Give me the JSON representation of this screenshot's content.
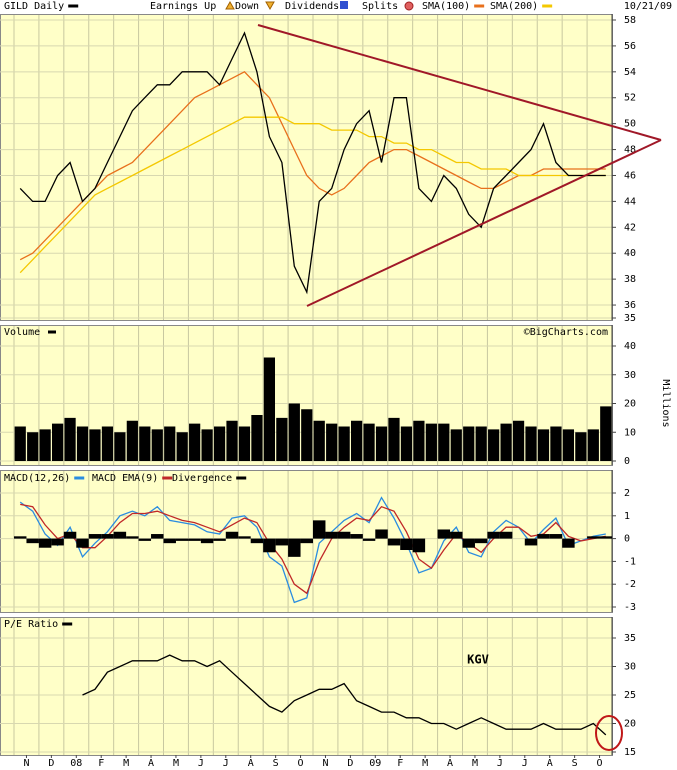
{
  "chart_data": [
    {
      "type": "line",
      "title": "GILD Daily",
      "date": "10/21/09",
      "markers": [
        "Earnings Up",
        "Down",
        "Dividends",
        "Splits"
      ],
      "ylim": [
        35,
        58
      ],
      "yticks": [
        35,
        36,
        38,
        40,
        42,
        44,
        46,
        48,
        50,
        52,
        54,
        56,
        58
      ],
      "series": [
        {
          "name": "SMA(100)",
          "color": "#e8701c",
          "values": [
            39.5,
            40,
            41,
            42,
            43,
            44,
            45,
            46,
            46.5,
            47,
            48,
            49,
            50,
            51,
            52,
            52.5,
            53,
            53.5,
            54,
            53,
            52,
            50,
            48,
            46,
            45,
            44.5,
            45,
            46,
            47,
            47.5,
            48,
            48,
            47.5,
            47,
            46.5,
            46,
            45.5,
            45,
            45,
            45.5,
            46,
            46,
            46.5,
            46.5,
            46.5,
            46.5,
            46.5,
            46.5
          ]
        },
        {
          "name": "SMA(200)",
          "color": "#f4c800",
          "values": [
            38.5,
            39.5,
            40.5,
            41.5,
            42.5,
            43.5,
            44.5,
            45,
            45.5,
            46,
            46.5,
            47,
            47.5,
            48,
            48.5,
            49,
            49.5,
            50,
            50.5,
            50.5,
            50.5,
            50.5,
            50,
            50,
            50,
            49.5,
            49.5,
            49.5,
            49,
            49,
            48.5,
            48.5,
            48,
            48,
            47.5,
            47,
            47,
            46.5,
            46.5,
            46.5,
            46,
            46,
            46,
            46,
            46,
            46,
            46,
            46
          ]
        },
        {
          "name": "GILD Daily",
          "color": "#000000",
          "values": [
            45,
            44,
            44,
            46,
            47,
            44,
            45,
            47,
            49,
            51,
            52,
            53,
            53,
            54,
            54,
            54,
            53,
            55,
            57,
            54,
            49,
            47,
            39,
            37,
            44,
            45,
            48,
            50,
            51,
            47,
            52,
            52,
            45,
            44,
            46,
            45,
            43,
            42,
            45,
            46,
            47,
            48,
            50,
            47,
            46,
            46,
            46,
            46
          ]
        }
      ]
    },
    {
      "type": "bar",
      "title": "Volume",
      "credit": "©BigCharts.com",
      "ylabel": "Millions",
      "color": "#000000",
      "ylim": [
        0,
        40
      ],
      "yticks": [
        0,
        10,
        20,
        30,
        40
      ],
      "values": [
        12,
        10,
        11,
        13,
        15,
        12,
        11,
        12,
        10,
        14,
        12,
        11,
        12,
        10,
        13,
        11,
        12,
        14,
        12,
        16,
        36,
        15,
        20,
        18,
        14,
        13,
        12,
        14,
        13,
        12,
        15,
        12,
        14,
        13,
        13,
        11,
        12,
        12,
        11,
        13,
        14,
        12,
        11,
        12,
        11,
        10,
        11,
        19
      ]
    },
    {
      "type": "line",
      "ylim": [
        -3,
        2
      ],
      "yticks": [
        -3,
        -2,
        -1,
        0,
        1,
        2
      ],
      "series": [
        {
          "name": "MACD(12,26)",
          "color": "#2a8ce0",
          "values": [
            1.6,
            1.2,
            0.2,
            -0.3,
            0.5,
            -0.8,
            -0.2,
            0.3,
            1.0,
            1.2,
            1.0,
            1.4,
            0.8,
            0.7,
            0.6,
            0.3,
            0.2,
            0.9,
            1.0,
            0.5,
            -0.8,
            -1.2,
            -2.8,
            -2.6,
            -0.2,
            0.3,
            0.8,
            1.1,
            0.7,
            1.8,
            0.9,
            -0.2,
            -1.5,
            -1.3,
            -0.1,
            0.5,
            -0.6,
            -0.8,
            0.3,
            0.8,
            0.5,
            -0.2,
            0.4,
            0.9,
            -0.3,
            -0.1,
            0.1,
            0.2
          ]
        },
        {
          "name": "MACD EMA(9)",
          "color": "#c02828",
          "values": [
            1.5,
            1.4,
            0.6,
            0.0,
            0.2,
            -0.4,
            -0.4,
            0.1,
            0.7,
            1.1,
            1.1,
            1.2,
            1.0,
            0.8,
            0.7,
            0.5,
            0.3,
            0.6,
            0.9,
            0.7,
            -0.2,
            -0.9,
            -2.0,
            -2.4,
            -1.0,
            0.0,
            0.5,
            0.9,
            0.8,
            1.4,
            1.2,
            0.3,
            -0.9,
            -1.3,
            -0.5,
            0.2,
            -0.2,
            -0.6,
            0.0,
            0.5,
            0.5,
            0.1,
            0.2,
            0.7,
            0.1,
            -0.1,
            0.0,
            0.1
          ]
        },
        {
          "name": "Divergence",
          "color": "#000000",
          "style": "bar",
          "values": [
            0.1,
            -0.2,
            -0.4,
            -0.3,
            0.3,
            -0.4,
            0.2,
            0.2,
            0.3,
            0.1,
            -0.1,
            0.2,
            -0.2,
            -0.1,
            -0.1,
            -0.2,
            -0.1,
            0.3,
            0.1,
            -0.2,
            -0.6,
            -0.3,
            -0.8,
            -0.2,
            0.8,
            0.3,
            0.3,
            0.2,
            -0.1,
            0.4,
            -0.3,
            -0.5,
            -0.6,
            0.0,
            0.4,
            0.3,
            -0.4,
            -0.2,
            0.3,
            0.3,
            0.0,
            -0.3,
            0.2,
            0.2,
            -0.4,
            0.0,
            0.1,
            0.1
          ]
        }
      ]
    },
    {
      "type": "line",
      "annotation": "KGV",
      "ylim": [
        15,
        35
      ],
      "yticks": [
        15,
        20,
        25,
        30,
        35
      ],
      "xlim": [
        -0.5,
        47.5
      ],
      "xticks": [
        {
          "value": 0.5,
          "label": "N"
        },
        {
          "value": 2.5,
          "label": "D"
        },
        {
          "value": 4.5,
          "label": "08"
        },
        {
          "value": 6.5,
          "label": "F"
        },
        {
          "value": 8.5,
          "label": "M"
        },
        {
          "value": 10.5,
          "label": "A"
        },
        {
          "value": 12.5,
          "label": "M"
        },
        {
          "value": 14.5,
          "label": "J"
        },
        {
          "value": 16.5,
          "label": "J"
        },
        {
          "value": 18.5,
          "label": "A"
        },
        {
          "value": 20.5,
          "label": "S"
        },
        {
          "value": 22.5,
          "label": "O"
        },
        {
          "value": 24.5,
          "label": "N"
        },
        {
          "value": 26.5,
          "label": "D"
        },
        {
          "value": 28.5,
          "label": "09"
        },
        {
          "value": 30.5,
          "label": "F"
        },
        {
          "value": 32.5,
          "label": "M"
        },
        {
          "value": 34.5,
          "label": "A"
        },
        {
          "value": 36.5,
          "label": "M"
        },
        {
          "value": 38.5,
          "label": "J"
        },
        {
          "value": 40.5,
          "label": "J"
        },
        {
          "value": 42.5,
          "label": "A"
        },
        {
          "value": 44.5,
          "label": "S"
        },
        {
          "value": 46.5,
          "label": "O"
        }
      ],
      "series": [
        {
          "name": "P/E Ratio",
          "color": "#000000",
          "values": [
            null,
            null,
            null,
            null,
            null,
            25,
            26,
            29,
            30,
            31,
            31,
            31,
            32,
            31,
            31,
            30,
            31,
            29,
            27,
            25,
            23,
            22,
            24,
            25,
            26,
            26,
            27,
            24,
            23,
            22,
            22,
            21,
            21,
            20,
            20,
            19,
            20,
            21,
            20,
            19,
            19,
            19,
            20,
            19,
            19,
            19,
            20,
            18
          ]
        }
      ]
    }
  ]
}
